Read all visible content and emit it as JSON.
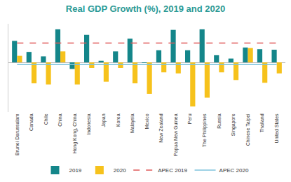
{
  "chart_data": {
    "type": "bar",
    "title": "Real GDP Growth (%), 2019 and 2020",
    "categories": [
      "Brunei Darussalam",
      "Canada",
      "Chile",
      "China",
      "Hong Kong, China",
      "Indonesia",
      "Japan",
      "Korea",
      "Malaysia",
      "Mexico",
      "New Zealand",
      "Papua New Guinea",
      "Peru",
      "The Philippines",
      "Russia",
      "Singapore",
      "Chinese Taipei",
      "Thailand",
      "United States"
    ],
    "series": [
      {
        "name": "2019",
        "type": "bar",
        "color": "#14868a",
        "values": [
          3.9,
          1.9,
          1.1,
          6.0,
          -1.2,
          5.0,
          0.3,
          2.0,
          4.3,
          -0.1,
          2.2,
          5.9,
          2.2,
          6.0,
          1.3,
          0.7,
          2.7,
          2.4,
          2.3
        ]
      },
      {
        "name": "2020",
        "type": "bar",
        "color": "#f6c21c",
        "values": [
          1.2,
          -3.8,
          -4.0,
          2.0,
          -4.0,
          -1.0,
          -3.5,
          -1.0,
          -3.8,
          -5.7,
          -1.8,
          -2.0,
          -8.0,
          -6.4,
          -1.8,
          -3.2,
          2.6,
          -3.7,
          -2.0
        ]
      },
      {
        "name": "APEC 2019",
        "type": "line",
        "line_style": "dashed",
        "color": "#e05a5a",
        "values": [
          3.5,
          3.5,
          3.5,
          3.5,
          3.5,
          3.5,
          3.5,
          3.5,
          3.5,
          3.5,
          3.5,
          3.5,
          3.5,
          3.5,
          3.5,
          3.5,
          3.5,
          3.5,
          3.5
        ]
      },
      {
        "name": "APEC 2020",
        "type": "line",
        "line_style": "solid",
        "color": "#7ec3dd",
        "values": [
          -0.4,
          -0.4,
          -0.4,
          -0.4,
          -0.4,
          -0.4,
          -0.4,
          -0.4,
          -0.4,
          -0.4,
          -0.4,
          -0.4,
          -0.4,
          -0.4,
          -0.4,
          -0.4,
          -0.4,
          -0.4,
          -0.4
        ]
      }
    ],
    "ylim": [
      -9,
      7
    ],
    "tick_labels": "x",
    "grid": false,
    "legend": "bottom"
  }
}
